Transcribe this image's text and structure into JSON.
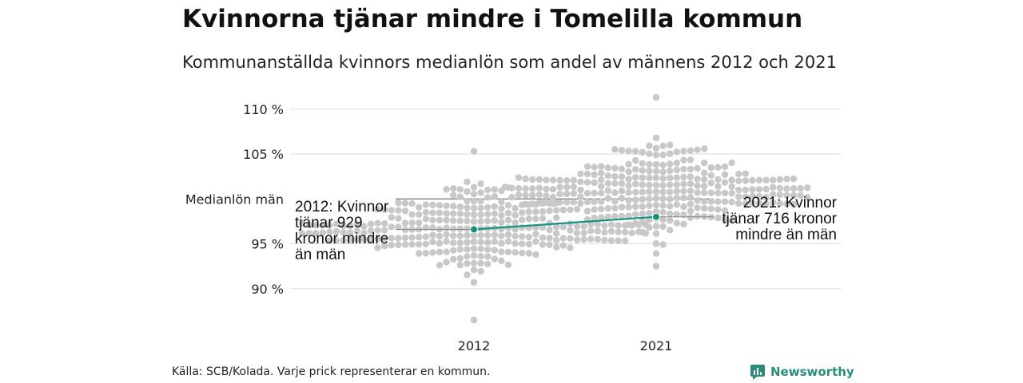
{
  "title": "Kvinnorna tjänar mindre i Tomelilla kommun",
  "subtitle": "Kommunanställda kvinnors medianlön som andel av männens 2012 och 2021",
  "source": "Källa: SCB/Kolada. Varje prick representerar en kommun.",
  "brand": {
    "name": "Newsworthy",
    "icon": "newsworthy-logo-icon"
  },
  "colors": {
    "dots": "#c8c8c8",
    "highlight": "#14927e",
    "grid": "#dddddd",
    "reference": "#555555"
  },
  "chart_data": {
    "type": "scatter",
    "subtype": "beeswarm",
    "title": "Kvinnorna tjänar mindre i Tomelilla kommun",
    "subtitle": "Kommunanställda kvinnors medianlön som andel av männens 2012 och 2021",
    "categories": [
      "2012",
      "2021"
    ],
    "y_ticks": [
      90,
      95,
      105,
      110
    ],
    "y_tick_labels": [
      "90 %",
      "95 %",
      "105 %",
      "110 %"
    ],
    "ylim": [
      85.5,
      112
    ],
    "reference_line": {
      "label": "Medianlön män",
      "value": 100
    },
    "grid": true,
    "highlight": {
      "name": "Tomelilla",
      "values": [
        96.6,
        98.0
      ],
      "annotations": [
        "2012: Kvinnor\ntjänar 929\nkronor mindre\nän män",
        "2021: Kvinnor\ntjänar 716 kronor\nmindre än män"
      ]
    },
    "distributions": [
      {
        "category": "2012",
        "median": 96.7,
        "min": 86.5,
        "max": 105.3,
        "count": 290
      },
      {
        "category": "2021",
        "median": 100.8,
        "min": 92.5,
        "max": 111.3,
        "count": 290
      }
    ]
  }
}
